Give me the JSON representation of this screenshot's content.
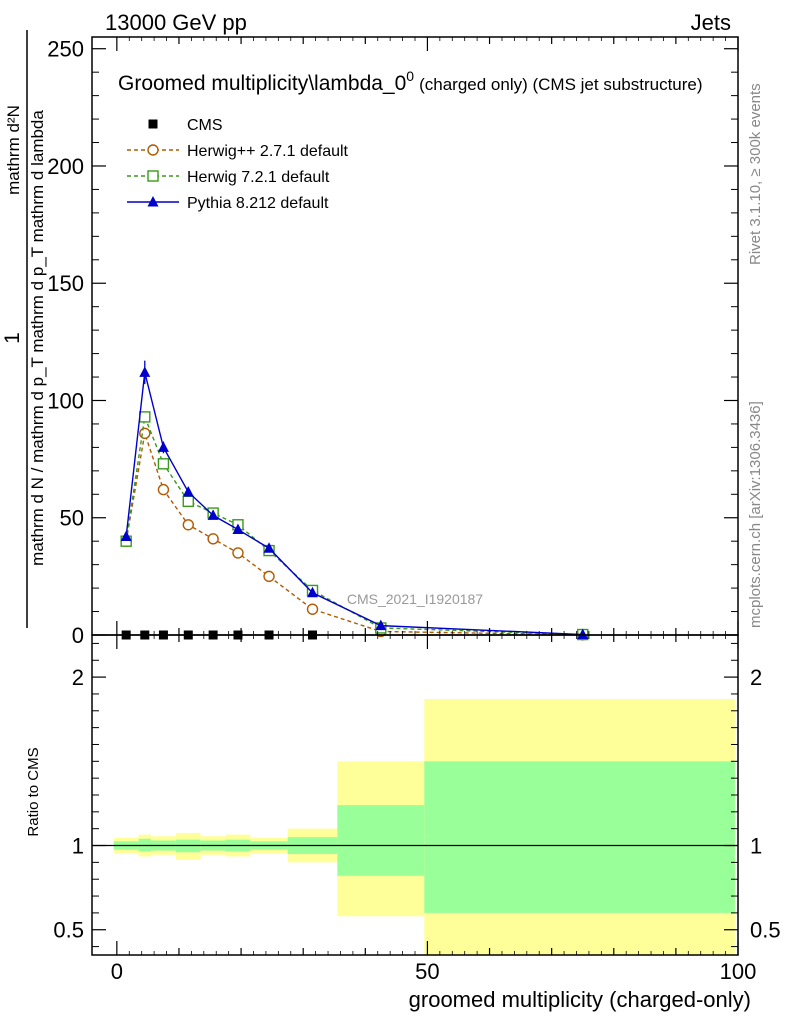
{
  "header": {
    "energy_label": "13000 GeV pp",
    "process_label": "Jets"
  },
  "side_labels": {
    "rivet": "Rivet 3.1.10, ≥ 300k events",
    "mcplots": "mcplots.cern.ch [arXiv:1306.3436]"
  },
  "watermark": "CMS_2021_I1920187",
  "chart_data": [
    {
      "type": "line",
      "title_main": "Groomed multiplicity\\lambda_0",
      "title_sup": "0",
      "title_tail": "(charged only) (CMS jet substructure)",
      "ylabel_num": "1",
      "ylabel_den": "mathrm d N / mathrm d p_T mathrm d p_T mathrm d lambda",
      "ylabel_sub_num": "mathrm d²N",
      "ylim": [
        0,
        255
      ],
      "yticks": [
        0,
        50,
        100,
        150,
        200,
        250
      ],
      "xlim": [
        -4,
        100
      ],
      "legend_position": "top-left",
      "series": [
        {
          "name": "CMS",
          "style": "data",
          "color": "#000000",
          "x": [
            1.5,
            4.5,
            7.5,
            11.5,
            15.5,
            19.5,
            24.5,
            31.5
          ],
          "y": [
            0,
            0,
            0,
            0,
            0,
            0,
            0,
            0
          ]
        },
        {
          "name": "Herwig++ 2.7.1 default",
          "style": "dashed-circle",
          "color": "#b35900",
          "x": [
            1.5,
            4.5,
            7.5,
            11.5,
            15.5,
            19.5,
            24.5,
            31.5,
            42.5,
            75
          ],
          "y": [
            40,
            86,
            62,
            47,
            41,
            35,
            25,
            11,
            1.5,
            0.1
          ]
        },
        {
          "name": "Herwig 7.2.1 default",
          "style": "dashed-square",
          "color": "#3a9a1a",
          "x": [
            1.5,
            4.5,
            7.5,
            11.5,
            15.5,
            19.5,
            24.5,
            31.5,
            42.5,
            75
          ],
          "y": [
            40,
            93,
            73,
            57,
            52,
            47,
            36,
            19,
            3,
            0.2
          ]
        },
        {
          "name": "Pythia 8.212 default",
          "style": "solid-triangle",
          "color": "#0000cc",
          "x": [
            1.5,
            4.5,
            7.5,
            11.5,
            15.5,
            19.5,
            24.5,
            31.5,
            42.5,
            75
          ],
          "y": [
            42,
            112,
            80,
            61,
            51,
            45,
            37,
            18,
            4,
            0.2
          ],
          "yerr": [
            1.5,
            5,
            2.5,
            2,
            1.5,
            1.5,
            1,
            0.6,
            0.2,
            0.05
          ]
        }
      ]
    },
    {
      "type": "area",
      "ylabel": "Ratio to CMS",
      "xlabel": "groomed multiplicity (charged-only)",
      "ylim": [
        0.35,
        2.25
      ],
      "yticks": [
        0.5,
        1,
        2
      ],
      "ytick_labels": [
        "0.5",
        "1",
        "2"
      ],
      "xlim": [
        -4,
        100
      ],
      "xticks": [
        0,
        50,
        100
      ],
      "reference": 1,
      "bands": [
        {
          "x0": -0.5,
          "x1": 3.5,
          "in_lo": 0.975,
          "in_hi": 1.025,
          "out_lo": 0.955,
          "out_hi": 1.045
        },
        {
          "x0": 3.5,
          "x1": 5.5,
          "in_lo": 0.965,
          "in_hi": 1.04,
          "out_lo": 0.935,
          "out_hi": 1.065
        },
        {
          "x0": 5.5,
          "x1": 9.5,
          "in_lo": 0.97,
          "in_hi": 1.03,
          "out_lo": 0.945,
          "out_hi": 1.055
        },
        {
          "x0": 9.5,
          "x1": 13.5,
          "in_lo": 0.96,
          "in_hi": 1.035,
          "out_lo": 0.915,
          "out_hi": 1.075
        },
        {
          "x0": 13.5,
          "x1": 17.5,
          "in_lo": 0.97,
          "in_hi": 1.03,
          "out_lo": 0.945,
          "out_hi": 1.055
        },
        {
          "x0": 17.5,
          "x1": 21.5,
          "in_lo": 0.965,
          "in_hi": 1.035,
          "out_lo": 0.935,
          "out_hi": 1.065
        },
        {
          "x0": 21.5,
          "x1": 27.5,
          "in_lo": 0.975,
          "in_hi": 1.025,
          "out_lo": 0.955,
          "out_hi": 1.045
        },
        {
          "x0": 27.5,
          "x1": 35.5,
          "in_lo": 0.95,
          "in_hi": 1.05,
          "out_lo": 0.9,
          "out_hi": 1.1
        },
        {
          "x0": 35.5,
          "x1": 49.5,
          "in_lo": 0.82,
          "in_hi": 1.24,
          "out_lo": 0.58,
          "out_hi": 1.5
        },
        {
          "x0": 49.5,
          "x1": 99.5,
          "in_lo": 0.6,
          "in_hi": 1.5,
          "out_lo": 0.35,
          "out_hi": 1.87
        }
      ],
      "band_colors": {
        "inner": "#99ff99",
        "outer": "#ffff99"
      }
    }
  ]
}
